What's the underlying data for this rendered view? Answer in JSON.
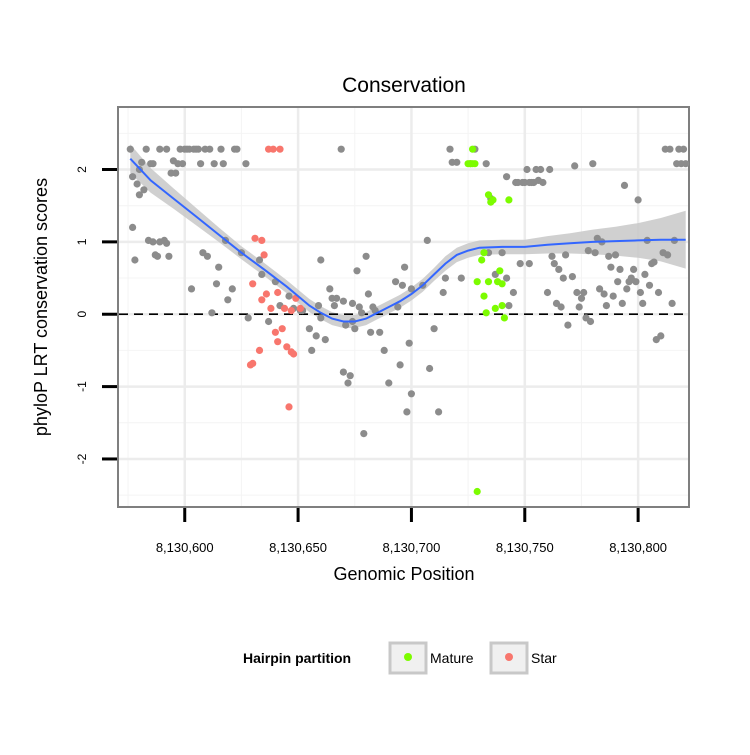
{
  "chart_data": {
    "type": "scatter",
    "title": "Conservation",
    "xlabel": "Genomic Position",
    "ylabel": "phyloP LRT conservation scores",
    "xlim": [
      8130571,
      8130822
    ],
    "ylim": [
      -2.65,
      2.85
    ],
    "x_ticks": [
      8130600,
      8130650,
      8130700,
      8130750,
      8130800
    ],
    "x_tick_labels": [
      "8,130,600",
      "8,130,650",
      "8,130,700",
      "8,130,750",
      "8,130,800"
    ],
    "y_ticks": [
      -2,
      -1,
      0,
      1,
      2
    ],
    "y_tick_labels": [
      "-2",
      "-1",
      "0",
      "1",
      "2"
    ],
    "grid": true,
    "reference_line": {
      "y": 0,
      "style": "dashed"
    },
    "legend": {
      "title": "Hairpin partition",
      "position": "bottom",
      "entries": [
        {
          "label": "Mature",
          "color": "#7cfc00"
        },
        {
          "label": "Star",
          "color": "#f8766d"
        }
      ]
    },
    "colors": {
      "other": "#8c8c8c",
      "Mature": "#7cfc00",
      "Star": "#f8766d",
      "smooth_line": "#3366ff",
      "confidence_band": "#c8c8c8"
    },
    "series": [
      {
        "name": "Other",
        "points": [
          [
            8130576,
            2.28
          ],
          [
            8130577,
            1.9
          ],
          [
            8130577,
            1.2
          ],
          [
            8130578,
            0.75
          ],
          [
            8130579,
            1.8
          ],
          [
            8130580,
            1.65
          ],
          [
            8130580,
            2.0
          ],
          [
            8130581,
            2.1
          ],
          [
            8130582,
            1.72
          ],
          [
            8130583,
            2.28
          ],
          [
            8130584,
            1.02
          ],
          [
            8130585,
            2.08
          ],
          [
            8130586,
            2.08
          ],
          [
            8130586,
            1.0
          ],
          [
            8130587,
            0.82
          ],
          [
            8130588,
            0.8
          ],
          [
            8130589,
            2.28
          ],
          [
            8130589,
            1.0
          ],
          [
            8130591,
            1.02
          ],
          [
            8130592,
            2.28
          ],
          [
            8130592,
            0.98
          ],
          [
            8130593,
            0.8
          ],
          [
            8130594,
            1.95
          ],
          [
            8130595,
            2.12
          ],
          [
            8130596,
            1.95
          ],
          [
            8130597,
            2.08
          ],
          [
            8130598,
            2.28
          ],
          [
            8130599,
            2.08
          ],
          [
            8130600,
            2.28
          ],
          [
            8130601,
            2.28
          ],
          [
            8130602,
            2.28
          ],
          [
            8130603,
            0.35
          ],
          [
            8130604,
            2.28
          ],
          [
            8130605,
            2.28
          ],
          [
            8130606,
            2.28
          ],
          [
            8130607,
            2.08
          ],
          [
            8130608,
            0.85
          ],
          [
            8130609,
            2.28
          ],
          [
            8130610,
            0.8
          ],
          [
            8130611,
            2.28
          ],
          [
            8130612,
            0.02
          ],
          [
            8130613,
            2.08
          ],
          [
            8130614,
            0.42
          ],
          [
            8130615,
            0.65
          ],
          [
            8130616,
            2.28
          ],
          [
            8130617,
            2.08
          ],
          [
            8130618,
            1.02
          ],
          [
            8130619,
            0.2
          ],
          [
            8130621,
            0.35
          ],
          [
            8130622,
            2.28
          ],
          [
            8130623,
            2.28
          ],
          [
            8130625,
            0.85
          ],
          [
            8130627,
            2.08
          ],
          [
            8130628,
            -0.05
          ],
          [
            8130633,
            0.75
          ],
          [
            8130634,
            0.55
          ],
          [
            8130637,
            -0.1
          ],
          [
            8130640,
            0.45
          ],
          [
            8130642,
            0.12
          ],
          [
            8130646,
            0.25
          ],
          [
            8130648,
            0.08
          ],
          [
            8130651,
            0.05
          ],
          [
            8130652,
            0.05
          ],
          [
            8130655,
            -0.2
          ],
          [
            8130656,
            -0.5
          ],
          [
            8130658,
            -0.3
          ],
          [
            8130659,
            0.12
          ],
          [
            8130660,
            0.75
          ],
          [
            8130660,
            -0.05
          ],
          [
            8130662,
            -0.35
          ],
          [
            8130664,
            0.35
          ],
          [
            8130665,
            0.22
          ],
          [
            8130666,
            0.12
          ],
          [
            8130667,
            0.22
          ],
          [
            8130669,
            2.28
          ],
          [
            8130670,
            0.18
          ],
          [
            8130670,
            -0.8
          ],
          [
            8130671,
            -0.15
          ],
          [
            8130672,
            -0.95
          ],
          [
            8130673,
            -0.85
          ],
          [
            8130674,
            0.15
          ],
          [
            8130674,
            -0.1
          ],
          [
            8130675,
            -0.2
          ],
          [
            8130676,
            0.6
          ],
          [
            8130677,
            0.1
          ],
          [
            8130678,
            0.02
          ],
          [
            8130679,
            -1.65
          ],
          [
            8130680,
            0.8
          ],
          [
            8130681,
            0.28
          ],
          [
            8130682,
            -0.25
          ],
          [
            8130683,
            0.1
          ],
          [
            8130684,
            0.05
          ],
          [
            8130686,
            -0.25
          ],
          [
            8130688,
            -0.5
          ],
          [
            8130690,
            -0.95
          ],
          [
            8130693,
            0.45
          ],
          [
            8130694,
            0.1
          ],
          [
            8130695,
            -0.7
          ],
          [
            8130696,
            0.4
          ],
          [
            8130697,
            0.65
          ],
          [
            8130698,
            -1.35
          ],
          [
            8130699,
            -0.4
          ],
          [
            8130700,
            -1.1
          ],
          [
            8130700,
            0.35
          ],
          [
            8130705,
            0.4
          ],
          [
            8130707,
            1.02
          ],
          [
            8130708,
            -0.75
          ],
          [
            8130710,
            -0.2
          ],
          [
            8130712,
            -1.35
          ],
          [
            8130714,
            0.3
          ],
          [
            8130715,
            0.5
          ],
          [
            8130717,
            2.28
          ],
          [
            8130718,
            2.1
          ],
          [
            8130720,
            2.1
          ],
          [
            8130722,
            0.5
          ],
          [
            8130726,
            2.08
          ],
          [
            8130728,
            2.28
          ],
          [
            8130733,
            2.08
          ],
          [
            8130734,
            0.85
          ],
          [
            8130735,
            1.6
          ],
          [
            8130737,
            0.55
          ],
          [
            8130740,
            0.85
          ],
          [
            8130742,
            0.5
          ],
          [
            8130742,
            1.9
          ],
          [
            8130743,
            0.12
          ],
          [
            8130745,
            0.3
          ],
          [
            8130746,
            1.82
          ],
          [
            8130747,
            1.82
          ],
          [
            8130748,
            0.7
          ],
          [
            8130749,
            1.82
          ],
          [
            8130750,
            1.82
          ],
          [
            8130751,
            2.0
          ],
          [
            8130752,
            1.82
          ],
          [
            8130752,
            0.7
          ],
          [
            8130753,
            1.82
          ],
          [
            8130754,
            1.82
          ],
          [
            8130755,
            2.0
          ],
          [
            8130756,
            1.85
          ],
          [
            8130757,
            2.0
          ],
          [
            8130758,
            1.82
          ],
          [
            8130760,
            0.3
          ],
          [
            8130761,
            2.0
          ],
          [
            8130762,
            0.8
          ],
          [
            8130763,
            0.7
          ],
          [
            8130764,
            0.15
          ],
          [
            8130765,
            0.62
          ],
          [
            8130766,
            0.1
          ],
          [
            8130767,
            0.5
          ],
          [
            8130768,
            0.82
          ],
          [
            8130769,
            -0.15
          ],
          [
            8130771,
            0.52
          ],
          [
            8130772,
            2.05
          ],
          [
            8130773,
            0.3
          ],
          [
            8130774,
            0.1
          ],
          [
            8130775,
            0.22
          ],
          [
            8130776,
            0.3
          ],
          [
            8130777,
            -0.05
          ],
          [
            8130778,
            0.88
          ],
          [
            8130779,
            -0.1
          ],
          [
            8130780,
            2.08
          ],
          [
            8130781,
            0.85
          ],
          [
            8130782,
            1.05
          ],
          [
            8130783,
            0.35
          ],
          [
            8130784,
            1.0
          ],
          [
            8130785,
            0.28
          ],
          [
            8130786,
            0.12
          ],
          [
            8130787,
            0.8
          ],
          [
            8130788,
            0.65
          ],
          [
            8130789,
            0.25
          ],
          [
            8130790,
            0.82
          ],
          [
            8130791,
            0.45
          ],
          [
            8130792,
            0.62
          ],
          [
            8130793,
            0.15
          ],
          [
            8130794,
            1.78
          ],
          [
            8130795,
            0.35
          ],
          [
            8130796,
            0.45
          ],
          [
            8130797,
            0.5
          ],
          [
            8130798,
            0.62
          ],
          [
            8130799,
            0.45
          ],
          [
            8130800,
            1.58
          ],
          [
            8130801,
            0.3
          ],
          [
            8130802,
            0.15
          ],
          [
            8130803,
            0.55
          ],
          [
            8130804,
            1.02
          ],
          [
            8130805,
            0.4
          ],
          [
            8130806,
            0.7
          ],
          [
            8130807,
            0.72
          ],
          [
            8130808,
            -0.35
          ],
          [
            8130809,
            0.3
          ],
          [
            8130810,
            -0.3
          ],
          [
            8130811,
            0.85
          ],
          [
            8130812,
            2.28
          ],
          [
            8130813,
            0.82
          ],
          [
            8130814,
            2.28
          ],
          [
            8130815,
            0.15
          ],
          [
            8130816,
            1.02
          ],
          [
            8130817,
            2.08
          ],
          [
            8130818,
            2.28
          ],
          [
            8130819,
            2.08
          ],
          [
            8130820,
            2.28
          ],
          [
            8130821,
            2.08
          ]
        ]
      },
      {
        "name": "Mature",
        "points": [
          [
            8130725,
            2.08
          ],
          [
            8130726,
            2.08
          ],
          [
            8130727,
            2.08
          ],
          [
            8130727,
            2.28
          ],
          [
            8130728,
            2.08
          ],
          [
            8130729,
            0.45
          ],
          [
            8130729,
            -2.45
          ],
          [
            8130731,
            0.75
          ],
          [
            8130732,
            0.85
          ],
          [
            8130732,
            0.25
          ],
          [
            8130733,
            0.02
          ],
          [
            8130734,
            0.45
          ],
          [
            8130734,
            1.65
          ],
          [
            8130735,
            1.55
          ],
          [
            8130736,
            1.58
          ],
          [
            8130737,
            0.08
          ],
          [
            8130738,
            0.45
          ],
          [
            8130739,
            0.6
          ],
          [
            8130740,
            0.42
          ],
          [
            8130740,
            0.12
          ],
          [
            8130741,
            -0.05
          ],
          [
            8130743,
            1.58
          ]
        ]
      },
      {
        "name": "Star",
        "points": [
          [
            8130629,
            -0.7
          ],
          [
            8130630,
            0.42
          ],
          [
            8130630,
            -0.68
          ],
          [
            8130631,
            1.05
          ],
          [
            8130633,
            -0.5
          ],
          [
            8130634,
            1.02
          ],
          [
            8130634,
            0.2
          ],
          [
            8130635,
            0.82
          ],
          [
            8130636,
            0.28
          ],
          [
            8130637,
            2.28
          ],
          [
            8130638,
            0.08
          ],
          [
            8130639,
            2.28
          ],
          [
            8130640,
            -0.25
          ],
          [
            8130641,
            0.3
          ],
          [
            8130641,
            -0.38
          ],
          [
            8130642,
            2.28
          ],
          [
            8130643,
            -0.2
          ],
          [
            8130644,
            0.08
          ],
          [
            8130645,
            -0.45
          ],
          [
            8130646,
            -1.28
          ],
          [
            8130647,
            -0.52
          ],
          [
            8130647,
            0.05
          ],
          [
            8130648,
            -0.55
          ],
          [
            8130649,
            0.22
          ],
          [
            8130651,
            0.08
          ]
        ]
      }
    ],
    "smooth": {
      "x": [
        8130576,
        8130585,
        8130595,
        8130605,
        8130615,
        8130625,
        8130635,
        8130645,
        8130650,
        8130655,
        8130660,
        8130665,
        8130670,
        8130675,
        8130680,
        8130685,
        8130690,
        8130695,
        8130700,
        8130705,
        8130710,
        8130715,
        8130720,
        8130725,
        8130730,
        8130740,
        8130750,
        8130760,
        8130770,
        8130780,
        8130790,
        8130800,
        8130810,
        8130821
      ],
      "y": [
        2.15,
        1.85,
        1.6,
        1.35,
        1.1,
        0.85,
        0.62,
        0.38,
        0.25,
        0.12,
        0.02,
        -0.06,
        -0.1,
        -0.1,
        -0.06,
        0.02,
        0.1,
        0.18,
        0.28,
        0.4,
        0.55,
        0.7,
        0.82,
        0.88,
        0.92,
        0.93,
        0.93,
        0.96,
        0.98,
        1.0,
        1.01,
        1.02,
        1.03,
        1.03
      ],
      "se": [
        0.2,
        0.17,
        0.14,
        0.12,
        0.1,
        0.09,
        0.09,
        0.09,
        0.09,
        0.09,
        0.09,
        0.09,
        0.09,
        0.09,
        0.09,
        0.09,
        0.09,
        0.09,
        0.09,
        0.09,
        0.09,
        0.1,
        0.1,
        0.1,
        0.1,
        0.1,
        0.1,
        0.12,
        0.14,
        0.17,
        0.2,
        0.24,
        0.3,
        0.4
      ]
    }
  }
}
